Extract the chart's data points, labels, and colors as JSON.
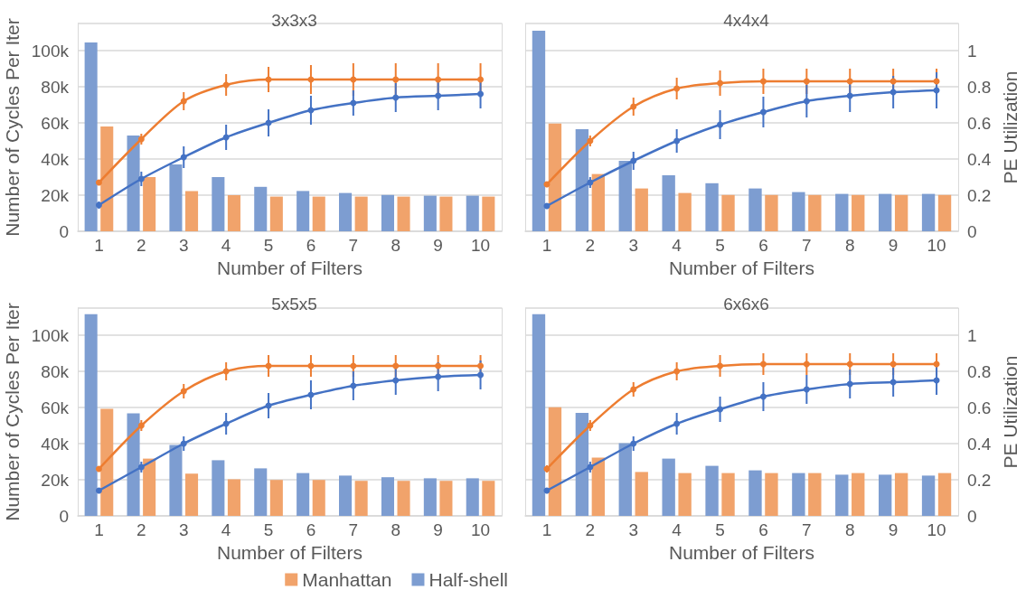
{
  "chart_data": [
    {
      "type": "bar",
      "title": "3x3x3",
      "xlabel": "Number of Filters",
      "ylabel": "Number of Cycles Per Iter",
      "categories": [
        "1",
        "2",
        "3",
        "4",
        "5",
        "6",
        "7",
        "8",
        "9",
        "10"
      ],
      "ylim": [
        0,
        115000
      ],
      "yticks": [
        {
          "value": 0,
          "label": "0"
        },
        {
          "value": 20000,
          "label": "20k"
        },
        {
          "value": 40000,
          "label": "40k"
        },
        {
          "value": 60000,
          "label": "60k"
        },
        {
          "value": 80000,
          "label": "80k"
        },
        {
          "value": 100000,
          "label": "100k"
        }
      ],
      "y2lim": [
        0,
        1.15
      ],
      "tick_labels": [
        "x",
        "y"
      ],
      "grid": "y",
      "marker": "circle",
      "series": [
        {
          "color": "#f1a36b",
          "values": [
            58000,
            30000,
            22300,
            20000,
            19200,
            19200,
            19200,
            19200,
            19200,
            19200
          ]
        },
        {
          "color": "#7d9dd1",
          "values": [
            104500,
            53000,
            37000,
            30000,
            24600,
            22300,
            21200,
            20100,
            19700,
            19700
          ]
        },
        {
          "type": "line",
          "axis": "y2",
          "color": "#ed7d31",
          "values": [
            0.27,
            0.51,
            0.72,
            0.81,
            0.84,
            0.84,
            0.84,
            0.84,
            0.84,
            0.84
          ],
          "errors": [
            0.01,
            0.03,
            0.05,
            0.06,
            0.07,
            0.08,
            0.09,
            0.09,
            0.09,
            0.09
          ]
        },
        {
          "type": "line",
          "axis": "y2",
          "color": "#4472c4",
          "values": [
            0.145,
            0.29,
            0.41,
            0.52,
            0.6,
            0.67,
            0.71,
            0.74,
            0.75,
            0.76
          ],
          "errors": [
            0.02,
            0.04,
            0.06,
            0.07,
            0.075,
            0.08,
            0.07,
            0.08,
            0.08,
            0.08
          ]
        }
      ]
    },
    {
      "type": "bar",
      "title": "4x4x4",
      "xlabel": "Number of Filters",
      "y2label": "PE Utilization",
      "categories": [
        "1",
        "2",
        "3",
        "4",
        "5",
        "6",
        "7",
        "8",
        "9",
        "10"
      ],
      "ylim": [
        0,
        115000
      ],
      "y2lim": [
        0,
        1.15
      ],
      "y2ticks": [
        0,
        0.2,
        0.4,
        0.6,
        0.8,
        1
      ],
      "tick_labels": [
        "x",
        "y2"
      ],
      "grid": "y",
      "marker": "circle",
      "series": [
        {
          "color": "#f1a36b",
          "values": [
            59600,
            31700,
            23700,
            21200,
            20100,
            20100,
            20100,
            20100,
            20100,
            20100
          ]
        },
        {
          "color": "#7d9dd1",
          "values": [
            111000,
            56500,
            39000,
            31000,
            26600,
            23700,
            21700,
            20700,
            20700,
            20700
          ]
        },
        {
          "type": "line",
          "axis": "y2",
          "color": "#ed7d31",
          "values": [
            0.26,
            0.5,
            0.69,
            0.79,
            0.82,
            0.83,
            0.83,
            0.83,
            0.83,
            0.83
          ],
          "errors": [
            0.01,
            0.03,
            0.05,
            0.06,
            0.07,
            0.07,
            0.07,
            0.07,
            0.07,
            0.07
          ]
        },
        {
          "type": "line",
          "axis": "y2",
          "color": "#4472c4",
          "values": [
            0.14,
            0.27,
            0.39,
            0.5,
            0.59,
            0.66,
            0.72,
            0.75,
            0.77,
            0.78
          ],
          "errors": [
            0.01,
            0.03,
            0.05,
            0.065,
            0.08,
            0.085,
            0.09,
            0.09,
            0.09,
            0.1
          ]
        }
      ]
    },
    {
      "type": "bar",
      "title": "5x5x5",
      "xlabel": "Number of Filters",
      "ylabel": "Number of Cycles Per Iter",
      "categories": [
        "1",
        "2",
        "3",
        "4",
        "5",
        "6",
        "7",
        "8",
        "9",
        "10"
      ],
      "ylim": [
        0,
        115000
      ],
      "yticks": [
        {
          "value": 0,
          "label": "0"
        },
        {
          "value": 20000,
          "label": "20k"
        },
        {
          "value": 40000,
          "label": "40k"
        },
        {
          "value": 60000,
          "label": "60k"
        },
        {
          "value": 80000,
          "label": "80k"
        },
        {
          "value": 100000,
          "label": "100k"
        }
      ],
      "y2lim": [
        0,
        1.15
      ],
      "tick_labels": [
        "x",
        "y"
      ],
      "grid": "y",
      "legend": "bottom right",
      "marker": "circle",
      "series": [
        {
          "name": "Manhattan",
          "color": "#f1a36b",
          "values": [
            59200,
            31700,
            23400,
            20300,
            19900,
            19900,
            19400,
            19400,
            19400,
            19400
          ]
        },
        {
          "name": "Half-shell",
          "color": "#7d9dd1",
          "values": [
            111600,
            56700,
            39300,
            30800,
            26300,
            23700,
            22300,
            21400,
            20800,
            20800
          ]
        },
        {
          "type": "line",
          "axis": "y2",
          "color": "#ed7d31",
          "values": [
            0.26,
            0.5,
            0.69,
            0.8,
            0.83,
            0.83,
            0.83,
            0.83,
            0.83,
            0.83
          ],
          "errors": [
            0.01,
            0.03,
            0.04,
            0.05,
            0.06,
            0.06,
            0.06,
            0.06,
            0.06,
            0.06
          ]
        },
        {
          "type": "line",
          "axis": "y2",
          "color": "#4472c4",
          "values": [
            0.14,
            0.27,
            0.4,
            0.51,
            0.61,
            0.67,
            0.72,
            0.75,
            0.77,
            0.78
          ],
          "errors": [
            0.01,
            0.03,
            0.04,
            0.06,
            0.07,
            0.08,
            0.08,
            0.08,
            0.08,
            0.08
          ]
        }
      ]
    },
    {
      "type": "bar",
      "title": "6x6x6",
      "xlabel": "Number of Filters",
      "y2label": "PE Utilization",
      "categories": [
        "1",
        "2",
        "3",
        "4",
        "5",
        "6",
        "7",
        "8",
        "9",
        "10"
      ],
      "ylim": [
        0,
        115000
      ],
      "y2lim": [
        0,
        1.15
      ],
      "y2ticks": [
        0,
        0.2,
        0.4,
        0.6,
        0.8,
        1
      ],
      "tick_labels": [
        "x",
        "y2"
      ],
      "grid": "y",
      "marker": "circle",
      "series": [
        {
          "color": "#f1a36b",
          "values": [
            60100,
            32200,
            24300,
            23700,
            23700,
            23700,
            23700,
            23700,
            23700,
            23700
          ]
        },
        {
          "color": "#7d9dd1",
          "values": [
            111600,
            57000,
            40200,
            31700,
            27700,
            25200,
            23700,
            22800,
            22800,
            22300
          ]
        },
        {
          "type": "line",
          "axis": "y2",
          "color": "#ed7d31",
          "values": [
            0.26,
            0.5,
            0.7,
            0.8,
            0.83,
            0.84,
            0.84,
            0.84,
            0.84,
            0.84
          ],
          "errors": [
            0.02,
            0.03,
            0.04,
            0.05,
            0.06,
            0.06,
            0.06,
            0.06,
            0.06,
            0.06
          ]
        },
        {
          "type": "line",
          "axis": "y2",
          "color": "#4472c4",
          "values": [
            0.14,
            0.27,
            0.4,
            0.51,
            0.59,
            0.66,
            0.7,
            0.73,
            0.74,
            0.75
          ],
          "errors": [
            0.01,
            0.03,
            0.04,
            0.06,
            0.07,
            0.08,
            0.08,
            0.08,
            0.08,
            0.08
          ]
        }
      ]
    }
  ]
}
